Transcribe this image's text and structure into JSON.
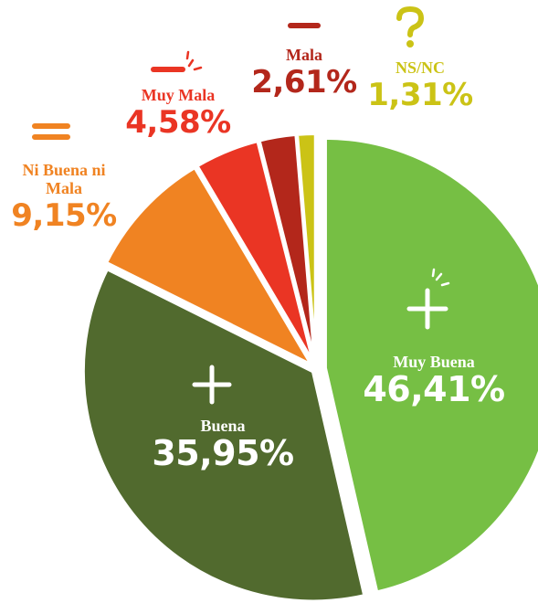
{
  "chart_data": {
    "type": "pie",
    "categories": [
      "Muy Buena",
      "Buena",
      "Ni Buena ni Mala",
      "Muy Mala",
      "Mala",
      "NS/NC"
    ],
    "values": [
      46.41,
      35.95,
      9.15,
      4.58,
      2.61,
      1.31
    ],
    "value_labels": [
      "46,41%",
      "35,95%",
      "9,15%",
      "4,58%",
      "2,61%",
      "1,31%"
    ],
    "colors": [
      "#76bf44",
      "#516a2e",
      "#f08322",
      "#ea3524",
      "#b3271b",
      "#cbc316"
    ]
  }
}
